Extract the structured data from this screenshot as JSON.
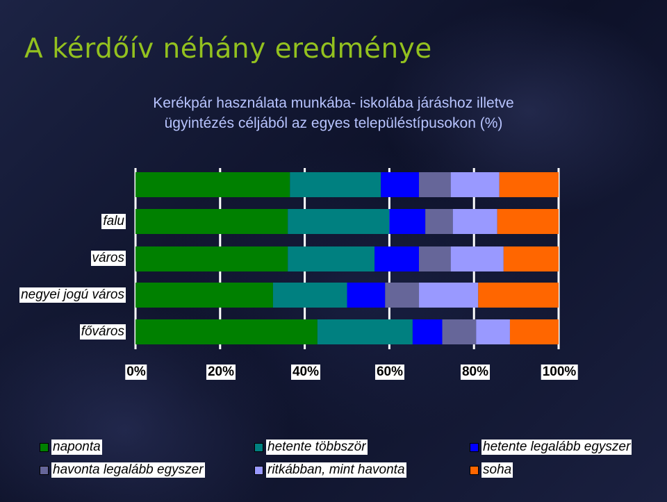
{
  "page": {
    "title": "A kérdőív néhány eredménye"
  },
  "chart_data": {
    "type": "bar",
    "orientation": "horizontal",
    "stacked": "percent",
    "title_line1": "Kerékpár használata munkába- iskolába járáshoz illetve",
    "title_line2": "ügyintézés céljából az egyes településtípusokon (%)",
    "categories": [
      "",
      "falu",
      "város",
      "megyei jogú város",
      "főváros"
    ],
    "category_labels_shown": [
      "falu",
      "város",
      "negyei jogú város",
      "főváros"
    ],
    "xlim": [
      0,
      100
    ],
    "xticks": [
      "0%",
      "20%",
      "40%",
      "60%",
      "80%",
      "100%"
    ],
    "grid": true,
    "legend_position": "bottom",
    "series": [
      {
        "name": "naponta",
        "color": "#008000",
        "values": [
          36.5,
          36,
          36,
          32.5,
          43
        ]
      },
      {
        "name": "hetente többször",
        "color": "#008080",
        "values": [
          21.5,
          24,
          20.5,
          17.5,
          22.5
        ]
      },
      {
        "name": "hetente legalább egyszer",
        "color": "#0000ff",
        "values": [
          9,
          8.5,
          10.5,
          9,
          7
        ]
      },
      {
        "name": "havonta legalább egyszer",
        "color": "#666699",
        "values": [
          7.5,
          6.5,
          7.5,
          8,
          8
        ]
      },
      {
        "name": "ritkábban, mint havonta",
        "color": "#9999ff",
        "values": [
          11.5,
          10.5,
          12.5,
          14,
          8
        ]
      },
      {
        "name": "soha",
        "color": "#ff6600",
        "values": [
          14,
          14.5,
          13,
          19,
          11.5
        ]
      }
    ]
  }
}
